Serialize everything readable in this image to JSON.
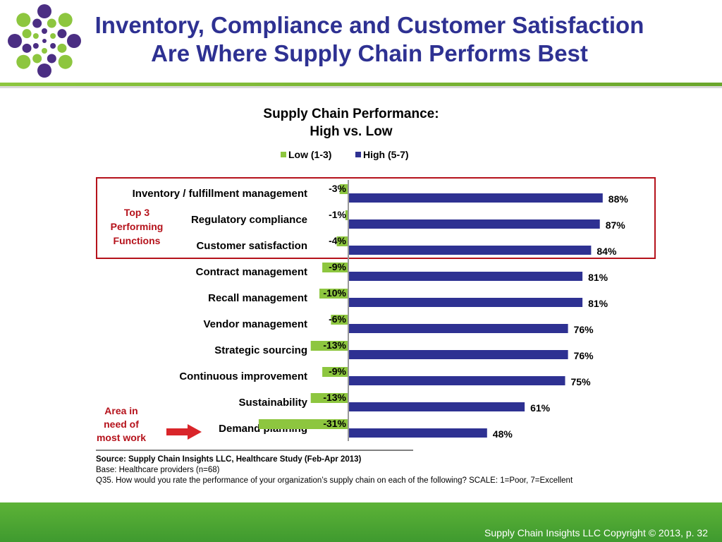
{
  "slide": {
    "title_line1": "Inventory, Compliance and Customer Satisfaction",
    "title_line2": "Are Where Supply Chain Performs Best"
  },
  "colors": {
    "title": "#2e3192",
    "low": "#8dc63f",
    "high": "#2e3192",
    "highlight_box": "#b5121b",
    "annotation_text": "#b5121b",
    "arrow": "#d9252a",
    "footer": "#4aa832",
    "logo_purple": "#4b2e83",
    "logo_green": "#8dc63f"
  },
  "chart_data": {
    "type": "bar",
    "orientation": "horizontal-diverging",
    "title": "Supply Chain Performance:",
    "subtitle": "High vs. Low",
    "legend_position": "top",
    "categories": [
      "Inventory / fulfillment management",
      "Regulatory compliance",
      "Customer satisfaction",
      "Contract management",
      "Recall management",
      "Vendor management",
      "Strategic sourcing",
      "Continuous improvement",
      "Sustainability",
      "Demand planning"
    ],
    "series": [
      {
        "name": "Low (1-3)",
        "values": [
          -3,
          -1,
          -4,
          -9,
          -10,
          -6,
          -13,
          -9,
          -13,
          -31
        ],
        "labels": [
          "-3%",
          "-1%",
          "-4%",
          "-9%",
          "-10%",
          "-6%",
          "-13%",
          "-9%",
          "-13%",
          "-31%"
        ]
      },
      {
        "name": "High (5-7)",
        "values": [
          88,
          87,
          84,
          81,
          81,
          76,
          76,
          75,
          61,
          48
        ],
        "labels": [
          "88%",
          "87%",
          "84%",
          "81%",
          "81%",
          "76%",
          "76%",
          "75%",
          "61%",
          "48%"
        ]
      }
    ],
    "grid": false
  },
  "annotations": {
    "top3": [
      "Top 3",
      "Performing",
      "Functions"
    ],
    "need_work": [
      "Area in",
      "need of",
      "most work"
    ]
  },
  "source": {
    "line1": "Source:  Supply Chain Insights LLC, Healthcare Study (Feb-Apr 2013)",
    "line2": "Base:  Healthcare providers (n=68)",
    "line3": "Q35. How would you rate the performance of your organization’s supply chain on each of the following? SCALE: 1=Poor, 7=Excellent"
  },
  "footer": {
    "text": "Supply Chain Insights LLC Copyright © 2013, p. 32"
  }
}
